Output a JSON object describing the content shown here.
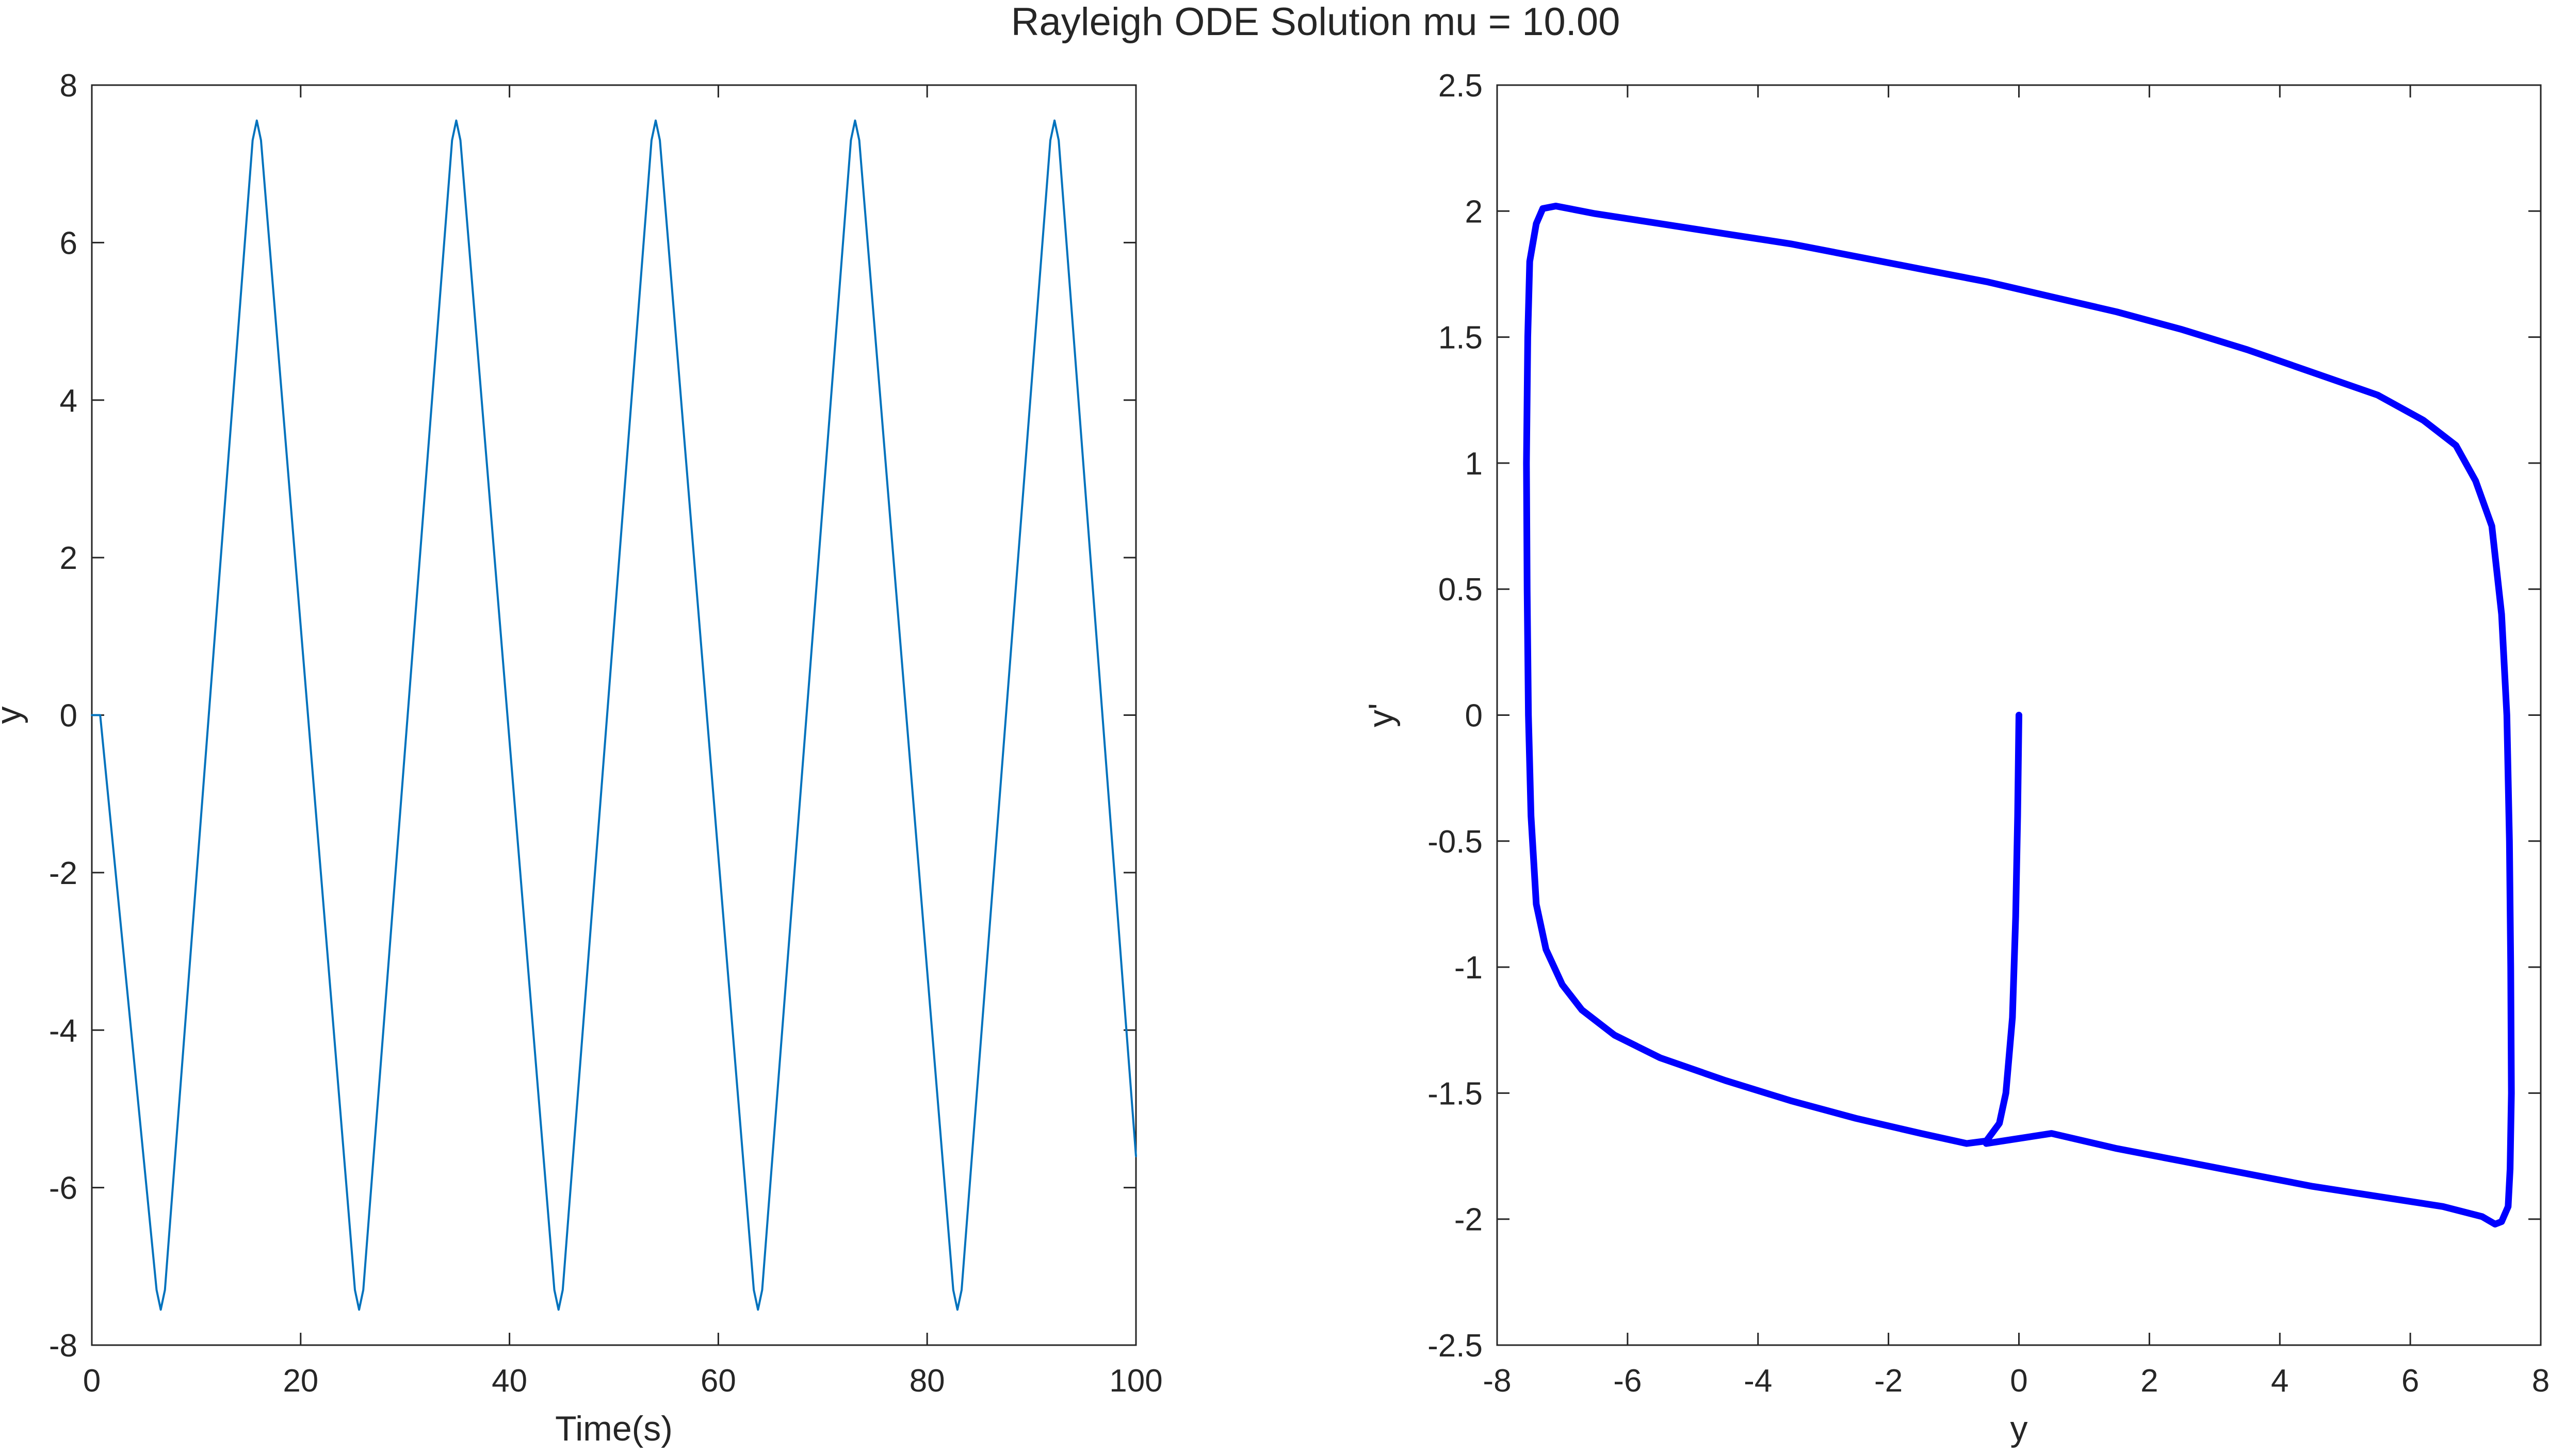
{
  "figure": {
    "title": "Rayleigh ODE Solution mu = 10.00"
  },
  "chart_data": [
    {
      "type": "line",
      "xlabel": "Time(s)",
      "ylabel": "y",
      "xlim": [
        0,
        100
      ],
      "ylim": [
        -8,
        8
      ],
      "xticks": [
        0,
        20,
        40,
        60,
        80,
        100
      ],
      "yticks": [
        -8,
        -6,
        -4,
        -2,
        0,
        2,
        4,
        6,
        8
      ],
      "grid": false,
      "line_color": "#0072bd",
      "series": [
        {
          "x": [
            0,
            0.8,
            6.2,
            6.6,
            7.0,
            15.4,
            15.8,
            16.2,
            25.2,
            25.6,
            26.0,
            34.5,
            34.9,
            35.3,
            44.3,
            44.7,
            45.1,
            53.6,
            54.0,
            54.4,
            63.4,
            63.8,
            64.2,
            72.7,
            73.1,
            73.5,
            82.5,
            82.9,
            83.3,
            91.8,
            92.2,
            92.6,
            100
          ],
          "y": [
            0,
            0,
            -7.3,
            -7.55,
            -7.3,
            7.3,
            7.55,
            7.3,
            -7.3,
            -7.55,
            -7.3,
            7.3,
            7.55,
            7.3,
            -7.3,
            -7.55,
            -7.3,
            7.3,
            7.55,
            7.3,
            -7.3,
            -7.55,
            -7.3,
            7.3,
            7.55,
            7.3,
            -7.3,
            -7.55,
            -7.3,
            7.3,
            7.55,
            7.3,
            -5.6
          ]
        }
      ]
    },
    {
      "type": "line",
      "xlabel": "y",
      "ylabel": "y'",
      "xlim": [
        -8,
        8
      ],
      "ylim": [
        -2.5,
        2.5
      ],
      "xticks": [
        -8,
        -6,
        -4,
        -2,
        0,
        2,
        4,
        6,
        8
      ],
      "yticks": [
        -2.5,
        -2,
        -1.5,
        -1,
        -0.5,
        0,
        0.5,
        1,
        1.5,
        2,
        2.5
      ],
      "grid": false,
      "line_color": "#0000ff",
      "series": [
        {
          "x": [
            0,
            -0.02,
            -0.05,
            -0.1,
            -0.2,
            -0.3,
            -0.5,
            -0.8,
            -1.5,
            -2.5,
            -3.5,
            -4.5,
            -5.5,
            -6.2,
            -6.7,
            -7.0,
            -7.25,
            -7.4,
            -7.48,
            -7.52,
            -7.54,
            -7.55,
            -7.53,
            -7.5,
            -7.4,
            -7.3,
            -7.1,
            -6.5,
            -5.5,
            -4.5,
            -3.5,
            -2.5,
            -1.5,
            -0.5,
            0.5,
            1.5,
            2.5,
            3.5,
            4.5,
            5.5,
            6.2,
            6.7,
            7.0,
            7.25,
            7.4,
            7.48,
            7.52,
            7.54,
            7.55,
            7.53,
            7.5,
            7.4,
            7.3,
            7.1,
            6.5,
            5.5,
            4.5,
            3.5,
            2.5,
            1.5,
            0.5,
            -0.5
          ],
          "y": [
            0,
            -0.4,
            -0.8,
            -1.2,
            -1.5,
            -1.62,
            -1.69,
            -1.7,
            -1.66,
            -1.6,
            -1.53,
            -1.45,
            -1.36,
            -1.27,
            -1.17,
            -1.07,
            -0.93,
            -0.75,
            -0.4,
            0,
            0.5,
            1.0,
            1.5,
            1.8,
            1.95,
            2.01,
            2.02,
            1.99,
            1.95,
            1.91,
            1.87,
            1.82,
            1.77,
            1.72,
            1.66,
            1.6,
            1.53,
            1.45,
            1.36,
            1.27,
            1.17,
            1.07,
            0.93,
            0.75,
            0.4,
            0,
            -0.5,
            -1.0,
            -1.5,
            -1.8,
            -1.95,
            -2.01,
            -2.02,
            -1.99,
            -1.95,
            -1.91,
            -1.87,
            -1.82,
            -1.77,
            -1.72,
            -1.66,
            -1.7
          ]
        }
      ]
    }
  ]
}
